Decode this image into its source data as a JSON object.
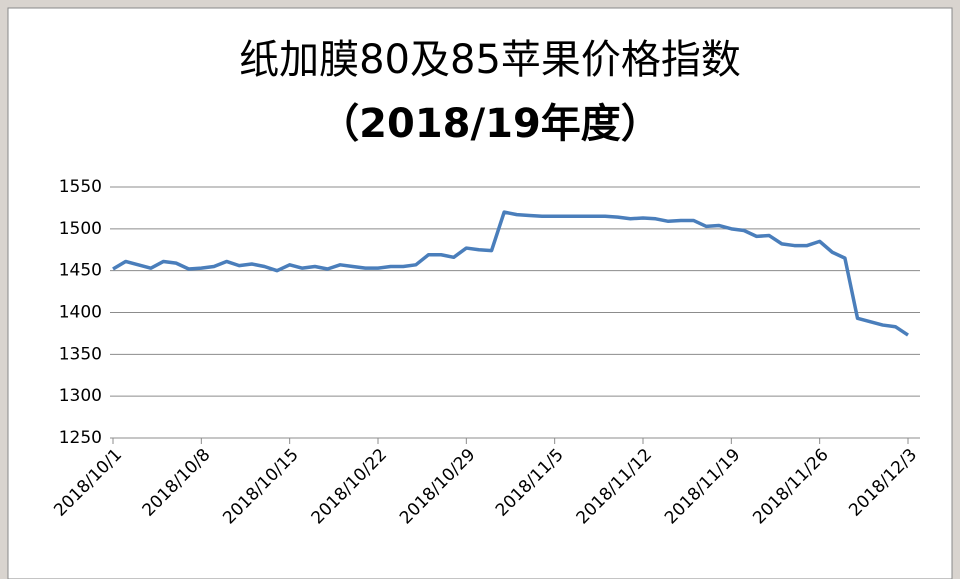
{
  "chart_data": {
    "type": "line",
    "title": "纸加膜80及85苹果价格指数",
    "subtitle": "（2018/19年度）",
    "categories": [
      "2018/10/1",
      null,
      null,
      null,
      null,
      null,
      null,
      "2018/10/8",
      null,
      null,
      null,
      null,
      null,
      null,
      "2018/10/15",
      null,
      null,
      null,
      null,
      null,
      null,
      "2018/10/22",
      null,
      null,
      null,
      null,
      null,
      null,
      "2018/10/29",
      null,
      null,
      null,
      null,
      null,
      null,
      "2018/11/5",
      null,
      null,
      null,
      null,
      null,
      null,
      "2018/11/12",
      null,
      null,
      null,
      null,
      null,
      null,
      "2018/11/19",
      null,
      null,
      null,
      null,
      null,
      null,
      "2018/11/26",
      null,
      null,
      null,
      null,
      null,
      null,
      "2018/12/3"
    ],
    "values": [
      1452,
      1461,
      1457,
      1453,
      1461,
      1459,
      1452,
      1453,
      1455,
      1461,
      1456,
      1458,
      1455,
      1450,
      1457,
      1453,
      1455,
      1452,
      1457,
      1455,
      1453,
      1453,
      1455,
      1455,
      1457,
      1469,
      1469,
      1466,
      1477,
      1475,
      1474,
      1520,
      1517,
      1516,
      1515,
      1515,
      1515,
      1515,
      1515,
      1515,
      1514,
      1512,
      1513,
      1512,
      1509,
      1510,
      1510,
      1503,
      1504,
      1500,
      1498,
      1491,
      1492,
      1482,
      1480,
      1480,
      1485,
      1472,
      1465,
      1393,
      1389,
      1385,
      1383,
      1373
    ],
    "color": "#4a7ebb",
    "ylim": [
      1250,
      1550
    ],
    "yticks": [
      1250,
      1300,
      1350,
      1400,
      1450,
      1500,
      1550
    ],
    "grid": true
  }
}
